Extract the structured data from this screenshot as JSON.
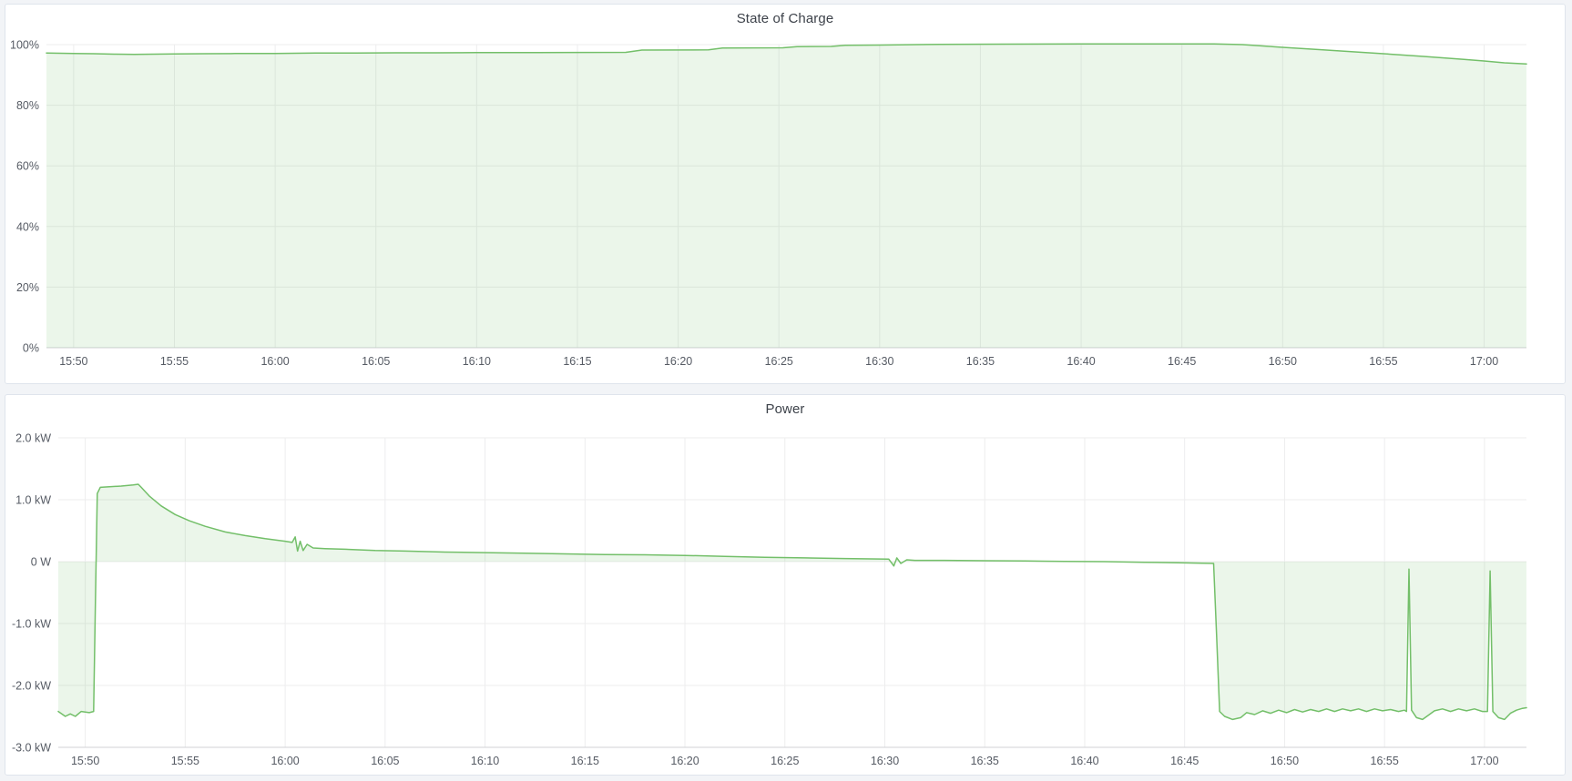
{
  "page": {
    "background": "#f2f4f7",
    "panel_background": "#ffffff",
    "panel_border": "#dfe4ec",
    "grid_color": "#ededee",
    "axis_line_color": "#d0d2d6",
    "tick_color": "#565b64",
    "title_color": "#3d424a",
    "accent_green": "#73bf69"
  },
  "chart_data": [
    {
      "type": "area",
      "title": "State of Charge",
      "xlabel": "time",
      "ylabel": "",
      "unit": "percent",
      "x_unit": "minutes_after_15:00",
      "xlim": [
        48.65,
        122.1
      ],
      "ylim": [
        0,
        100
      ],
      "grid": true,
      "legend_position": "none",
      "baseline": 0,
      "x_ticks": [
        {
          "t": 50,
          "label": "15:50"
        },
        {
          "t": 55,
          "label": "15:55"
        },
        {
          "t": 60,
          "label": "16:00"
        },
        {
          "t": 65,
          "label": "16:05"
        },
        {
          "t": 70,
          "label": "16:10"
        },
        {
          "t": 75,
          "label": "16:15"
        },
        {
          "t": 80,
          "label": "16:20"
        },
        {
          "t": 85,
          "label": "16:25"
        },
        {
          "t": 90,
          "label": "16:30"
        },
        {
          "t": 95,
          "label": "16:35"
        },
        {
          "t": 100,
          "label": "16:40"
        },
        {
          "t": 105,
          "label": "16:45"
        },
        {
          "t": 110,
          "label": "16:50"
        },
        {
          "t": 115,
          "label": "16:55"
        },
        {
          "t": 120,
          "label": "17:00"
        }
      ],
      "y_ticks": [
        {
          "v": 0,
          "label": "0%"
        },
        {
          "v": 20,
          "label": "20%"
        },
        {
          "v": 40,
          "label": "40%"
        },
        {
          "v": 60,
          "label": "60%"
        },
        {
          "v": 80,
          "label": "80%"
        },
        {
          "v": 100,
          "label": "100%"
        }
      ],
      "series": [
        {
          "name": "State of Charge",
          "color": "#73bf69",
          "fill_opacity": 0.14,
          "points": [
            [
              48.65,
              97.2
            ],
            [
              50,
              97.1
            ],
            [
              51,
              97.0
            ],
            [
              52,
              96.85
            ],
            [
              53,
              96.8
            ],
            [
              54,
              96.85
            ],
            [
              55,
              96.95
            ],
            [
              56.5,
              97.0
            ],
            [
              58,
              97.05
            ],
            [
              60,
              97.1
            ],
            [
              62,
              97.2
            ],
            [
              64,
              97.25
            ],
            [
              66,
              97.3
            ],
            [
              68,
              97.3
            ],
            [
              70,
              97.35
            ],
            [
              73,
              97.4
            ],
            [
              77.4,
              97.45
            ],
            [
              78.2,
              98.2
            ],
            [
              81.5,
              98.25
            ],
            [
              82.2,
              98.9
            ],
            [
              85.2,
              98.95
            ],
            [
              85.9,
              99.35
            ],
            [
              87.6,
              99.4
            ],
            [
              88.3,
              99.8
            ],
            [
              90,
              99.85
            ],
            [
              93,
              100.1
            ],
            [
              96,
              100.15
            ],
            [
              100,
              100.2
            ],
            [
              103,
              100.2
            ],
            [
              106.6,
              100.25
            ],
            [
              108,
              100.0
            ],
            [
              110,
              99.1
            ],
            [
              112,
              98.3
            ],
            [
              115,
              97.0
            ],
            [
              117,
              96.1
            ],
            [
              119,
              95.1
            ],
            [
              120,
              94.6
            ],
            [
              121,
              94.0
            ],
            [
              122.1,
              93.6
            ]
          ]
        }
      ]
    },
    {
      "type": "area",
      "title": "Power",
      "xlabel": "time",
      "ylabel": "",
      "unit": "kW",
      "x_unit": "minutes_after_15:00",
      "xlim": [
        48.65,
        122.1
      ],
      "ylim": [
        -3,
        2
      ],
      "grid": true,
      "legend_position": "none",
      "baseline": 0,
      "x_ticks": [
        {
          "t": 50,
          "label": "15:50"
        },
        {
          "t": 55,
          "label": "15:55"
        },
        {
          "t": 60,
          "label": "16:00"
        },
        {
          "t": 65,
          "label": "16:05"
        },
        {
          "t": 70,
          "label": "16:10"
        },
        {
          "t": 75,
          "label": "16:15"
        },
        {
          "t": 80,
          "label": "16:20"
        },
        {
          "t": 85,
          "label": "16:25"
        },
        {
          "t": 90,
          "label": "16:30"
        },
        {
          "t": 95,
          "label": "16:35"
        },
        {
          "t": 100,
          "label": "16:40"
        },
        {
          "t": 105,
          "label": "16:45"
        },
        {
          "t": 110,
          "label": "16:50"
        },
        {
          "t": 115,
          "label": "16:55"
        },
        {
          "t": 120,
          "label": "17:00"
        }
      ],
      "y_ticks": [
        {
          "v": -3,
          "label": "-3.0 kW"
        },
        {
          "v": -2,
          "label": "-2.0 kW"
        },
        {
          "v": -1,
          "label": "-1.0 kW"
        },
        {
          "v": 0,
          "label": "0 W"
        },
        {
          "v": 1,
          "label": "1.0 kW"
        },
        {
          "v": 2,
          "label": "2.0 kW"
        }
      ],
      "series": [
        {
          "name": "Power",
          "color": "#73bf69",
          "fill_opacity": 0.14,
          "points": [
            [
              48.65,
              -2.42
            ],
            [
              49.0,
              -2.5
            ],
            [
              49.25,
              -2.46
            ],
            [
              49.5,
              -2.5
            ],
            [
              49.8,
              -2.42
            ],
            [
              50.0,
              -2.43
            ],
            [
              50.2,
              -2.44
            ],
            [
              50.42,
              -2.42
            ],
            [
              50.5,
              -0.8
            ],
            [
              50.6,
              1.1
            ],
            [
              50.75,
              1.2
            ],
            [
              51.2,
              1.21
            ],
            [
              51.8,
              1.22
            ],
            [
              52.4,
              1.24
            ],
            [
              52.65,
              1.25
            ],
            [
              52.8,
              1.2
            ],
            [
              53.2,
              1.06
            ],
            [
              53.8,
              0.9
            ],
            [
              54.5,
              0.76
            ],
            [
              55.2,
              0.66
            ],
            [
              56,
              0.57
            ],
            [
              57,
              0.48
            ],
            [
              58,
              0.42
            ],
            [
              59,
              0.37
            ],
            [
              60,
              0.33
            ],
            [
              60.35,
              0.31
            ],
            [
              60.5,
              0.4
            ],
            [
              60.62,
              0.17
            ],
            [
              60.75,
              0.33
            ],
            [
              60.9,
              0.18
            ],
            [
              61.1,
              0.28
            ],
            [
              61.4,
              0.22
            ],
            [
              62,
              0.21
            ],
            [
              63,
              0.2
            ],
            [
              64.5,
              0.18
            ],
            [
              66,
              0.17
            ],
            [
              68,
              0.155
            ],
            [
              70,
              0.145
            ],
            [
              72,
              0.135
            ],
            [
              74,
              0.125
            ],
            [
              76,
              0.115
            ],
            [
              78,
              0.11
            ],
            [
              80,
              0.1
            ],
            [
              82,
              0.085
            ],
            [
              84,
              0.07
            ],
            [
              86,
              0.06
            ],
            [
              88,
              0.05
            ],
            [
              90.2,
              0.04
            ],
            [
              90.45,
              -0.07
            ],
            [
              90.6,
              0.06
            ],
            [
              90.8,
              -0.03
            ],
            [
              91.1,
              0.03
            ],
            [
              91.5,
              0.02
            ],
            [
              93,
              0.02
            ],
            [
              95,
              0.015
            ],
            [
              97,
              0.01
            ],
            [
              99,
              0.005
            ],
            [
              101,
              0
            ],
            [
              103,
              -0.01
            ],
            [
              105,
              -0.02
            ],
            [
              106.45,
              -0.03
            ],
            [
              106.6,
              -1.2
            ],
            [
              106.75,
              -2.42
            ],
            [
              107.0,
              -2.5
            ],
            [
              107.4,
              -2.55
            ],
            [
              107.8,
              -2.52
            ],
            [
              108.1,
              -2.44
            ],
            [
              108.5,
              -2.47
            ],
            [
              108.9,
              -2.41
            ],
            [
              109.3,
              -2.45
            ],
            [
              109.7,
              -2.4
            ],
            [
              110.1,
              -2.44
            ],
            [
              110.5,
              -2.39
            ],
            [
              110.9,
              -2.43
            ],
            [
              111.3,
              -2.39
            ],
            [
              111.7,
              -2.42
            ],
            [
              112.1,
              -2.38
            ],
            [
              112.5,
              -2.42
            ],
            [
              112.9,
              -2.38
            ],
            [
              113.3,
              -2.41
            ],
            [
              113.7,
              -2.38
            ],
            [
              114.1,
              -2.42
            ],
            [
              114.5,
              -2.38
            ],
            [
              114.9,
              -2.41
            ],
            [
              115.3,
              -2.39
            ],
            [
              115.7,
              -2.42
            ],
            [
              116.0,
              -2.4
            ],
            [
              116.1,
              -2.42
            ],
            [
              116.22,
              -0.12
            ],
            [
              116.35,
              -2.4
            ],
            [
              116.6,
              -2.52
            ],
            [
              116.9,
              -2.55
            ],
            [
              117.2,
              -2.48
            ],
            [
              117.5,
              -2.41
            ],
            [
              117.9,
              -2.38
            ],
            [
              118.3,
              -2.42
            ],
            [
              118.7,
              -2.38
            ],
            [
              119.1,
              -2.41
            ],
            [
              119.5,
              -2.38
            ],
            [
              119.9,
              -2.42
            ],
            [
              120.15,
              -2.42
            ],
            [
              120.28,
              -0.15
            ],
            [
              120.42,
              -2.42
            ],
            [
              120.7,
              -2.52
            ],
            [
              121.0,
              -2.55
            ],
            [
              121.3,
              -2.45
            ],
            [
              121.6,
              -2.4
            ],
            [
              121.9,
              -2.37
            ],
            [
              122.1,
              -2.36
            ]
          ]
        }
      ]
    }
  ]
}
